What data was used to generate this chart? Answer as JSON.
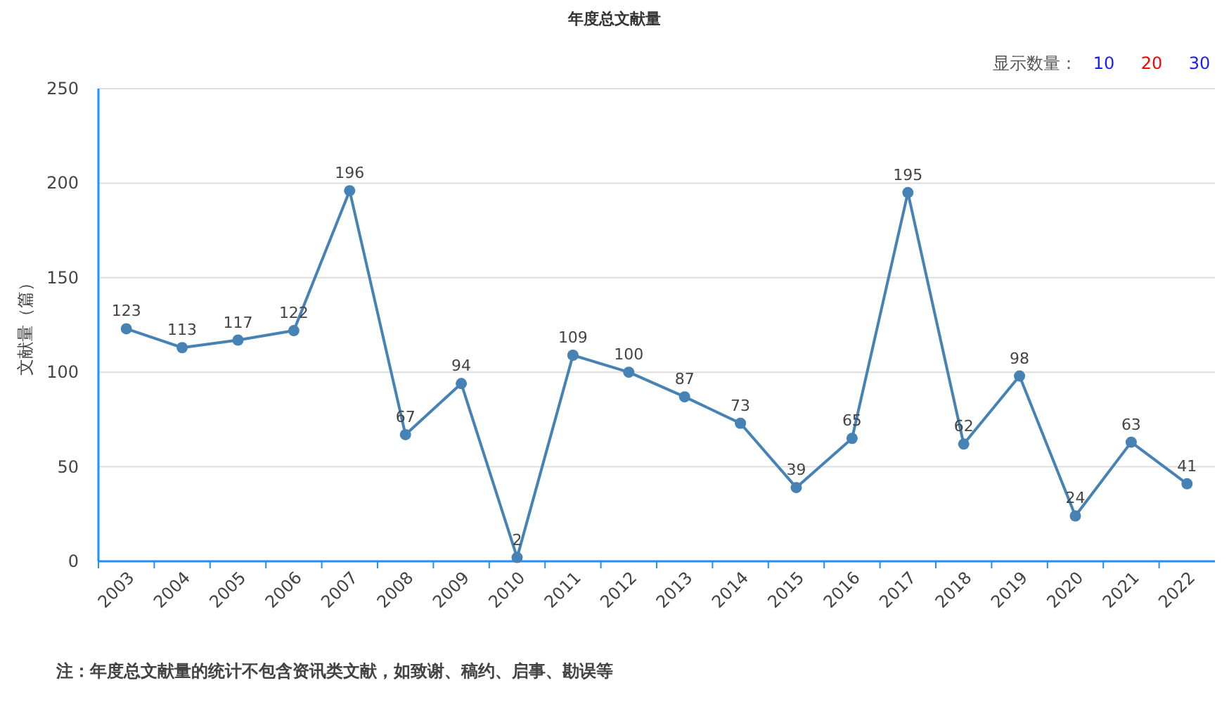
{
  "chart_data": {
    "type": "line",
    "title": "年度总文献量",
    "ylabel": "文献量（篇）",
    "categories": [
      "2003",
      "2004",
      "2005",
      "2006",
      "2007",
      "2008",
      "2009",
      "2010",
      "2011",
      "2012",
      "2013",
      "2014",
      "2015",
      "2016",
      "2017",
      "2018",
      "2019",
      "2020",
      "2021",
      "2022"
    ],
    "series": [
      {
        "color": "#4682b4",
        "values": [
          123,
          113,
          117,
          122,
          196,
          67,
          94,
          2,
          109,
          100,
          87,
          73,
          39,
          65,
          195,
          62,
          98,
          24,
          63,
          41
        ]
      }
    ],
    "ylim": [
      0,
      250
    ],
    "yticks": [
      0,
      50,
      100,
      150,
      200,
      250
    ],
    "grid": "y",
    "marker": "circle",
    "line_style": "solid",
    "data_labels": true,
    "annotations": [
      "显示数量：",
      "10",
      "20",
      "30",
      "注：年度总文献量的统计不包含资讯类文献，如致谢、稿约、启事、勘误等"
    ]
  }
}
